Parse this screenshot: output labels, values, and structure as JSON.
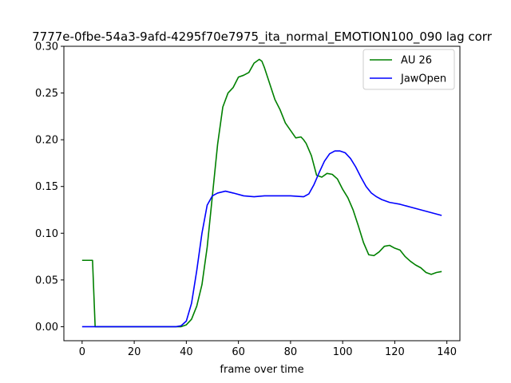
{
  "chart_data": {
    "type": "line",
    "title": "7777e-0fbe-54a3-9afd-4295f70e7975_ita_normal_EMOTION100_090  lag corr",
    "xlabel": "frame over time",
    "ylabel": "",
    "xlim": [
      -7,
      145
    ],
    "ylim": [
      -0.015,
      0.3
    ],
    "xticks": [
      0,
      20,
      40,
      60,
      80,
      100,
      120,
      140
    ],
    "yticks": [
      0.0,
      0.05,
      0.1,
      0.15,
      0.2,
      0.25,
      0.3
    ],
    "ytick_labels": [
      "0.00",
      "0.05",
      "0.10",
      "0.15",
      "0.20",
      "0.25",
      "0.30"
    ],
    "grid": false,
    "legend_position": "top-right",
    "series": [
      {
        "name": "AU 26",
        "color": "#008000",
        "x": [
          0,
          4,
          5,
          38,
          40,
          42,
          44,
          46,
          48,
          50,
          52,
          54,
          56,
          58,
          60,
          62,
          64,
          66,
          68,
          69,
          70,
          72,
          74,
          76,
          78,
          80,
          82,
          84,
          85,
          86,
          88,
          90,
          92,
          94,
          96,
          98,
          100,
          102,
          104,
          106,
          108,
          110,
          112,
          114,
          116,
          118,
          120,
          122,
          124,
          126,
          128,
          130,
          132,
          134,
          136,
          138
        ],
        "y": [
          0.071,
          0.071,
          0.0,
          0.0,
          0.002,
          0.008,
          0.022,
          0.045,
          0.085,
          0.14,
          0.195,
          0.235,
          0.25,
          0.256,
          0.267,
          0.269,
          0.272,
          0.282,
          0.286,
          0.284,
          0.277,
          0.26,
          0.243,
          0.232,
          0.218,
          0.21,
          0.202,
          0.203,
          0.2,
          0.196,
          0.183,
          0.162,
          0.16,
          0.164,
          0.163,
          0.158,
          0.147,
          0.138,
          0.125,
          0.108,
          0.09,
          0.077,
          0.076,
          0.08,
          0.086,
          0.087,
          0.084,
          0.082,
          0.075,
          0.07,
          0.066,
          0.063,
          0.058,
          0.056,
          0.058,
          0.059
        ]
      },
      {
        "name": "JawOpen",
        "color": "#0000ff",
        "x": [
          0,
          36,
          38,
          40,
          42,
          44,
          46,
          48,
          50,
          52,
          55,
          58,
          62,
          66,
          70,
          75,
          80,
          85,
          87,
          89,
          91,
          93,
          95,
          97,
          99,
          101,
          103,
          105,
          107,
          109,
          111,
          113,
          115,
          118,
          122,
          126,
          130,
          134,
          138
        ],
        "y": [
          0.0,
          0.0,
          0.001,
          0.006,
          0.025,
          0.06,
          0.1,
          0.13,
          0.14,
          0.143,
          0.145,
          0.143,
          0.14,
          0.139,
          0.14,
          0.14,
          0.14,
          0.139,
          0.142,
          0.152,
          0.165,
          0.177,
          0.185,
          0.188,
          0.188,
          0.186,
          0.18,
          0.171,
          0.16,
          0.15,
          0.143,
          0.139,
          0.136,
          0.133,
          0.131,
          0.128,
          0.125,
          0.122,
          0.119
        ]
      }
    ]
  }
}
